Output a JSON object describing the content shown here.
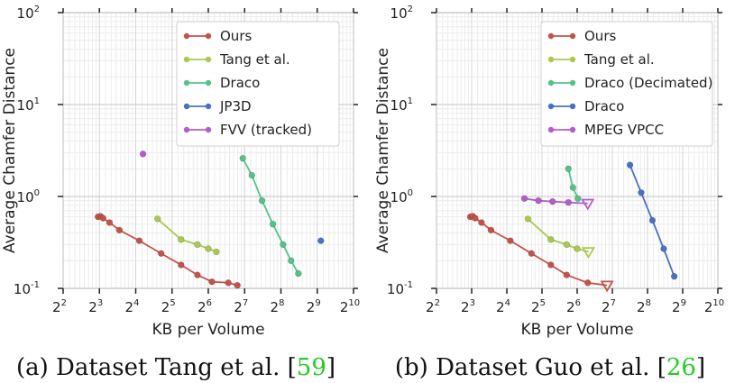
{
  "chart_data": [
    {
      "type": "line",
      "caption_prefix": "(a) Dataset Tang et al. [",
      "caption_ref": "59",
      "caption_suffix": "]",
      "ref_color": "#22cc22",
      "xlabel": "KB per Volume",
      "ylabel": "Average Chamfer Distance",
      "x_scale": "log2",
      "y_scale": "log10",
      "xlim": [
        2,
        10
      ],
      "ylim": [
        -1,
        2
      ],
      "x_ticks": [
        2,
        3,
        4,
        5,
        6,
        7,
        8,
        9,
        10
      ],
      "y_ticks": [
        -1,
        0,
        1,
        2
      ],
      "legend_position": "upper-right",
      "series": [
        {
          "name": "Ours",
          "color": "#c4524a",
          "marker": "circle",
          "x": [
            2.96,
            3.03,
            3.1,
            3.28,
            3.55,
            4.1,
            4.7,
            5.25,
            5.7,
            6.1,
            6.55,
            6.8
          ],
          "y": [
            0.6,
            0.61,
            0.58,
            0.52,
            0.43,
            0.33,
            0.24,
            0.18,
            0.14,
            0.118,
            0.115,
            0.108
          ]
        },
        {
          "name": "Tang et al.",
          "color": "#aac951",
          "marker": "circle",
          "x": [
            4.6,
            5.25,
            5.7,
            6.0,
            6.22
          ],
          "y": [
            0.57,
            0.34,
            0.3,
            0.27,
            0.25
          ]
        },
        {
          "name": "Draco",
          "color": "#52c489",
          "marker": "circle",
          "x": [
            6.95,
            7.2,
            7.48,
            7.78,
            8.06,
            8.28,
            8.48
          ],
          "y": [
            2.6,
            1.7,
            0.9,
            0.5,
            0.3,
            0.2,
            0.145
          ]
        },
        {
          "name": "JP3D",
          "color": "#4a70c4",
          "marker": "circle",
          "x": [
            9.1
          ],
          "y": [
            0.33
          ]
        },
        {
          "name": "FVV (tracked)",
          "color": "#b45ccc",
          "marker": "circle",
          "x": [
            4.2
          ],
          "y": [
            2.9
          ]
        }
      ]
    },
    {
      "type": "line",
      "caption_prefix": "(b) Dataset Guo et al. [",
      "caption_ref": "26",
      "caption_suffix": "]",
      "ref_color": "#22cc22",
      "xlabel": "KB per Volume",
      "ylabel": "Average Chamfer Distance",
      "x_scale": "log2",
      "y_scale": "log10",
      "xlim": [
        2,
        10
      ],
      "ylim": [
        -1,
        2
      ],
      "x_ticks": [
        2,
        3,
        4,
        5,
        6,
        7,
        8,
        9,
        10
      ],
      "y_ticks": [
        -1,
        0,
        1,
        2
      ],
      "legend_position": "upper-right",
      "series": [
        {
          "name": "Ours",
          "color": "#c4524a",
          "marker": "circle",
          "last_marker": "triangle-down",
          "x": [
            2.96,
            3.03,
            3.1,
            3.28,
            3.55,
            4.1,
            4.7,
            5.25,
            5.7,
            6.3,
            6.85
          ],
          "y": [
            0.6,
            0.61,
            0.58,
            0.52,
            0.43,
            0.33,
            0.24,
            0.18,
            0.14,
            0.115,
            0.108
          ]
        },
        {
          "name": "Tang et al.",
          "color": "#aac951",
          "marker": "circle",
          "last_marker": "triangle-down",
          "x": [
            4.6,
            5.25,
            5.7,
            6.0,
            6.32
          ],
          "y": [
            0.57,
            0.34,
            0.3,
            0.27,
            0.25
          ]
        },
        {
          "name": "Draco (Decimated)",
          "color": "#52c489",
          "marker": "circle",
          "x": [
            5.75,
            5.88,
            6.02
          ],
          "y": [
            2.0,
            1.25,
            0.95
          ]
        },
        {
          "name": "Draco",
          "color": "#4a70c4",
          "marker": "circle",
          "x": [
            7.5,
            7.82,
            8.14,
            8.46,
            8.76
          ],
          "y": [
            2.2,
            1.1,
            0.55,
            0.27,
            0.135
          ]
        },
        {
          "name": "MPEG VPCC",
          "color": "#b45ccc",
          "marker": "circle",
          "last_marker": "triangle-down",
          "x": [
            4.5,
            4.9,
            5.3,
            5.75,
            6.3
          ],
          "y": [
            0.95,
            0.9,
            0.88,
            0.86,
            0.84
          ]
        }
      ]
    }
  ]
}
